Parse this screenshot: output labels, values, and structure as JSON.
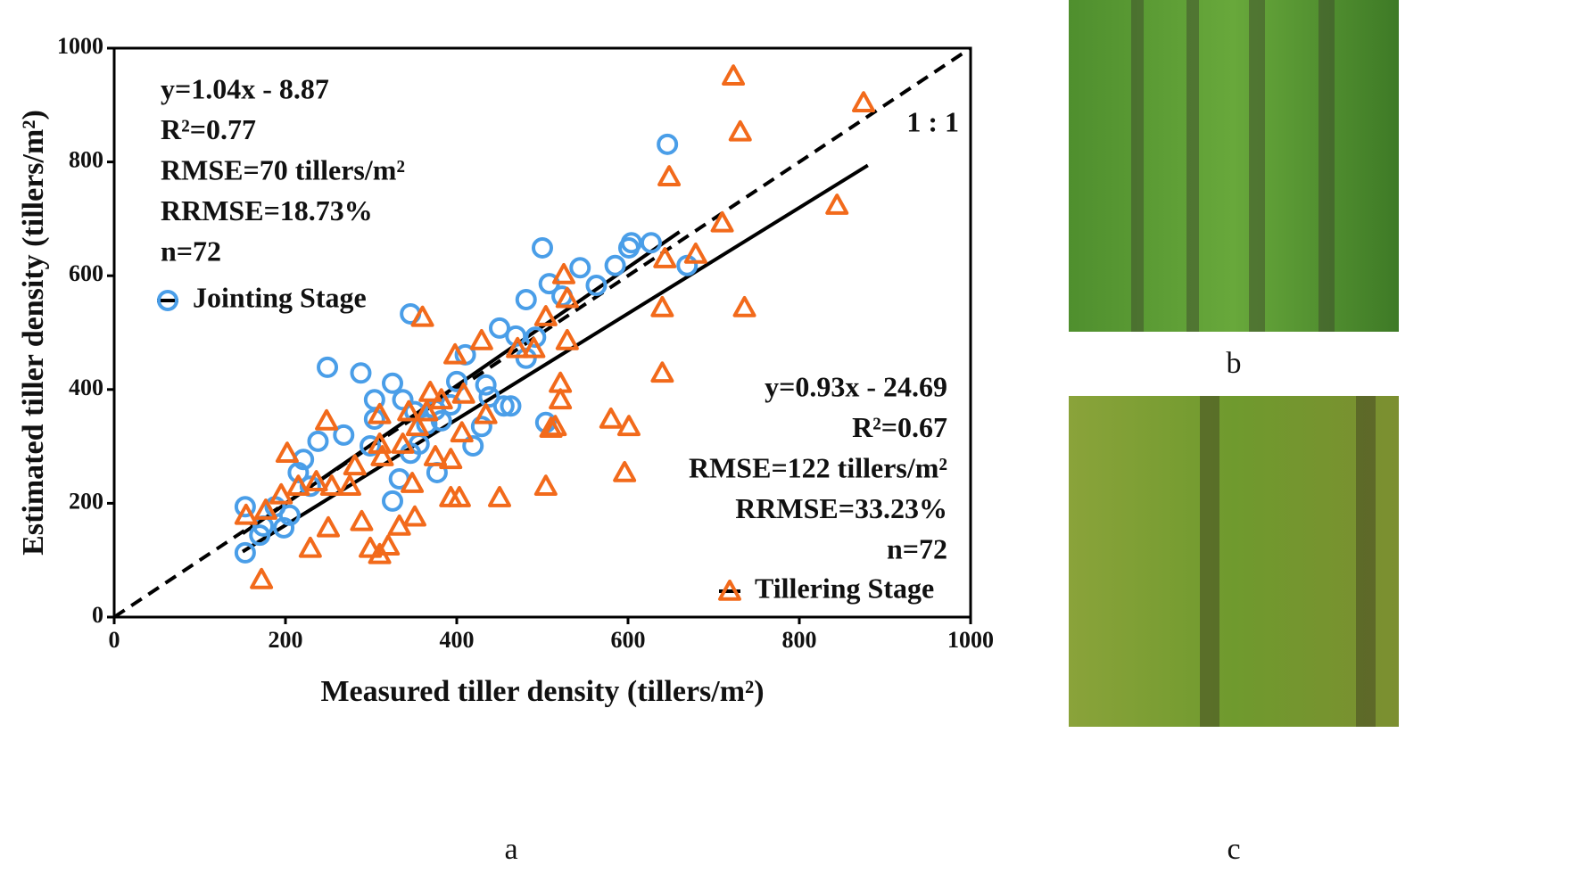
{
  "chart_data": {
    "type": "scatter",
    "x_label": "Measured tiller density (tillers/m²)",
    "y_label": "Estimated tiller density (tillers/m²)",
    "xlim": [
      0,
      1000
    ],
    "ylim": [
      0,
      1000
    ],
    "xticks": [
      0,
      200,
      400,
      600,
      800,
      1000
    ],
    "yticks": [
      0,
      200,
      400,
      600,
      800,
      1000
    ],
    "series": [
      {
        "name": "Jointing Stage",
        "color": "#4a9ee8",
        "marker": "circle",
        "x": [
          153,
          153,
          170,
          174,
          188,
          198,
          205,
          215,
          221,
          229,
          238,
          249,
          268,
          288,
          299,
          304,
          304,
          325,
          325,
          333,
          337,
          346,
          346,
          351,
          356,
          365,
          375,
          377,
          382,
          393,
          400,
          410,
          419,
          429,
          434,
          438,
          450,
          455,
          463,
          469,
          481,
          481,
          492,
          500,
          504,
          508,
          523,
          544,
          563,
          585,
          601,
          604,
          627,
          646,
          669
        ],
        "values": [
          194,
          113,
          144,
          160,
          194,
          157,
          179,
          254,
          277,
          230,
          309,
          439,
          320,
          429,
          301,
          348,
          382,
          411,
          204,
          243,
          382,
          533,
          288,
          361,
          304,
          339,
          364,
          254,
          345,
          373,
          414,
          461,
          301,
          335,
          408,
          387,
          508,
          371,
          371,
          494,
          558,
          455,
          492,
          649,
          342,
          586,
          564,
          614,
          583,
          618,
          649,
          658,
          658,
          831,
          618
        ]
      },
      {
        "name": "Tillering Stage",
        "color": "#f26a1b",
        "marker": "triangle",
        "x": [
          154,
          172,
          177,
          195,
          202,
          215,
          229,
          236,
          248,
          250,
          254,
          275,
          281,
          289,
          299,
          310,
          310,
          310,
          313,
          320,
          333,
          337,
          344,
          348,
          351,
          354,
          360,
          365,
          369,
          375,
          382,
          393,
          393,
          398,
          403,
          406,
          408,
          429,
          434,
          450,
          471,
          490,
          504,
          504,
          510,
          515,
          521,
          521,
          525,
          529,
          529,
          580,
          596,
          601,
          640,
          640,
          643,
          648,
          679,
          710,
          723,
          731,
          736,
          844,
          875
        ],
        "values": [
          179,
          66,
          188,
          215,
          288,
          230,
          121,
          238,
          345,
          157,
          230,
          230,
          266,
          168,
          121,
          356,
          304,
          110,
          282,
          125,
          160,
          304,
          361,
          235,
          176,
          335,
          527,
          361,
          395,
          282,
          382,
          277,
          210,
          461,
          210,
          324,
          392,
          486,
          356,
          210,
          472,
          472,
          230,
          528,
          332,
          335,
          411,
          382,
          602,
          560,
          486,
          348,
          254,
          335,
          429,
          544,
          630,
          774,
          638,
          693,
          951,
          853,
          544,
          724,
          904
        ]
      }
    ],
    "fit_lines": [
      {
        "x": [
          150,
          660
        ],
        "values": [
          147,
          677
        ]
      },
      {
        "x": [
          150,
          880
        ],
        "values": [
          115,
          794
        ]
      }
    ],
    "identity_line": {
      "x": [
        0,
        1000
      ],
      "values": [
        0,
        1000
      ],
      "label": "1 : 1"
    },
    "annotations": [
      [
        "y=1.04x - 8.87",
        "R²=0.77",
        "RMSE=70 tillers/m²",
        "RRMSE=18.73%",
        "n=72"
      ],
      [
        "y=0.93x - 24.69",
        "R²=0.67",
        "RMSE=122 tillers/m²",
        "RRMSE=33.23%",
        "n=72"
      ]
    ]
  },
  "panel_labels": [
    "a",
    "b",
    "c"
  ]
}
